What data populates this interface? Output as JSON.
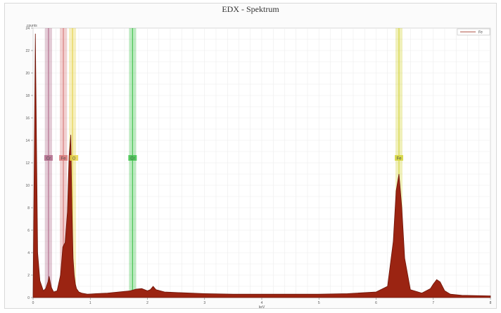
{
  "chart_data": {
    "type": "area",
    "title": "EDX - Spektrum",
    "ylabel": "counts",
    "xlabel": "keV",
    "xlim": [
      0,
      8
    ],
    "ylim": [
      0,
      24
    ],
    "x_ticks": [
      0,
      1,
      2,
      3,
      4,
      5,
      6,
      7,
      8
    ],
    "y_ticks": [
      0,
      2,
      4,
      6,
      8,
      10,
      12,
      14,
      16,
      18,
      20,
      22,
      24
    ],
    "grid": true,
    "legend": {
      "position": "top-right",
      "entries": [
        "Fe"
      ]
    },
    "colors": {
      "spectrum": "#9b2412",
      "spectrum_line": "#6e1408"
    },
    "series": [
      {
        "name": "Fe",
        "x": [
          0.0,
          0.04,
          0.08,
          0.12,
          0.18,
          0.22,
          0.26,
          0.28,
          0.32,
          0.36,
          0.42,
          0.48,
          0.52,
          0.56,
          0.6,
          0.63,
          0.66,
          0.68,
          0.7,
          0.72,
          0.74,
          0.76,
          0.8,
          0.85,
          0.95,
          1.1,
          1.3,
          1.5,
          1.7,
          1.8,
          1.9,
          2.0,
          2.05,
          2.1,
          2.15,
          2.3,
          2.5,
          3.0,
          3.5,
          4.0,
          4.5,
          5.0,
          5.5,
          6.0,
          6.2,
          6.3,
          6.35,
          6.4,
          6.45,
          6.5,
          6.6,
          6.8,
          6.95,
          7.0,
          7.06,
          7.12,
          7.2,
          7.3,
          7.5,
          8.0
        ],
        "y": [
          0.3,
          23.5,
          4.0,
          1.5,
          0.6,
          0.8,
          1.4,
          1.9,
          0.9,
          0.5,
          0.6,
          2.0,
          4.5,
          4.9,
          7.6,
          12.6,
          14.5,
          8.0,
          3.5,
          2.0,
          1.2,
          0.8,
          0.5,
          0.4,
          0.3,
          0.35,
          0.4,
          0.5,
          0.6,
          0.75,
          0.8,
          0.6,
          0.7,
          1.0,
          0.7,
          0.5,
          0.45,
          0.35,
          0.3,
          0.3,
          0.3,
          0.3,
          0.35,
          0.5,
          1.0,
          5.0,
          9.5,
          11.0,
          8.0,
          3.5,
          0.7,
          0.4,
          0.8,
          1.2,
          1.6,
          1.4,
          0.6,
          0.3,
          0.2,
          0.15
        ]
      }
    ],
    "element_lines": [
      {
        "label": "Cr",
        "x": 0.27,
        "color": "#b06a8a"
      },
      {
        "label": "Fe",
        "x": 0.53,
        "color": "#d87878"
      },
      {
        "label": "O",
        "x": 0.69,
        "color": "#e6d246"
      },
      {
        "label": "Cr",
        "x": 1.74,
        "color": "#3fc24b"
      },
      {
        "label": "Fe",
        "x": 6.4,
        "color": "#d4d438"
      }
    ]
  }
}
